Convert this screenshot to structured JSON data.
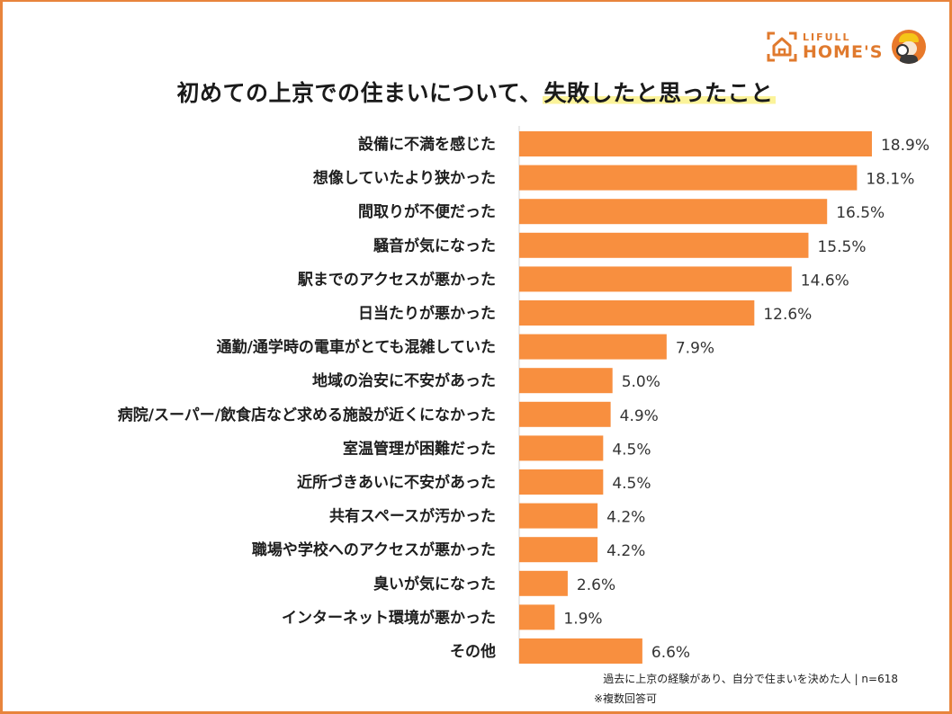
{
  "brand": {
    "line1": "LIFULL",
    "line2": "HOME'S",
    "logo_icon": "house-frame-icon",
    "mascot_icon": "mascot-detective-icon",
    "accent_color": "#e8843c"
  },
  "title": {
    "main": "初めての上京での住まいについて、",
    "highlight": "失敗したと思ったこと",
    "highlight_color": "#fbf39a"
  },
  "chart_data": {
    "type": "bar",
    "orientation": "horizontal",
    "title": "初めての上京での住まいについて、失敗したと思ったこと",
    "xlabel": "",
    "ylabel": "",
    "unit": "%",
    "grid": false,
    "legend": "none",
    "bar_color": "#f88f3f",
    "xlim": [
      0,
      20
    ],
    "categories": [
      "設備に不満を感じた",
      "想像していたより狭かった",
      "間取りが不便だった",
      "騒音が気になった",
      "駅までのアクセスが悪かった",
      "日当たりが悪かった",
      "通勤/通学時の電車がとても混雑していた",
      "地域の治安に不安があった",
      "病院/スーパー/飲食店など求める施設が近くになかった",
      "室温管理が困難だった",
      "近所づきあいに不安があった",
      "共有スペースが汚かった",
      "職場や学校へのアクセスが悪かった",
      "臭いが気になった",
      "インターネット環境が悪かった",
      "その他"
    ],
    "values": [
      18.9,
      18.1,
      16.5,
      15.5,
      14.6,
      12.6,
      7.9,
      5.0,
      4.9,
      4.5,
      4.5,
      4.2,
      4.2,
      2.6,
      1.9,
      6.6
    ],
    "value_labels": [
      "18.9%",
      "18.1%",
      "16.5%",
      "15.5%",
      "14.6%",
      "12.6%",
      "7.9%",
      "5.0%",
      "4.9%",
      "4.5%",
      "4.5%",
      "4.2%",
      "4.2%",
      "2.6%",
      "1.9%",
      "6.6%"
    ]
  },
  "footnotes": {
    "sample": "過去に上京の経験があり、自分で住まいを決めた人 | n=618",
    "multiple": "※複数回答可"
  }
}
